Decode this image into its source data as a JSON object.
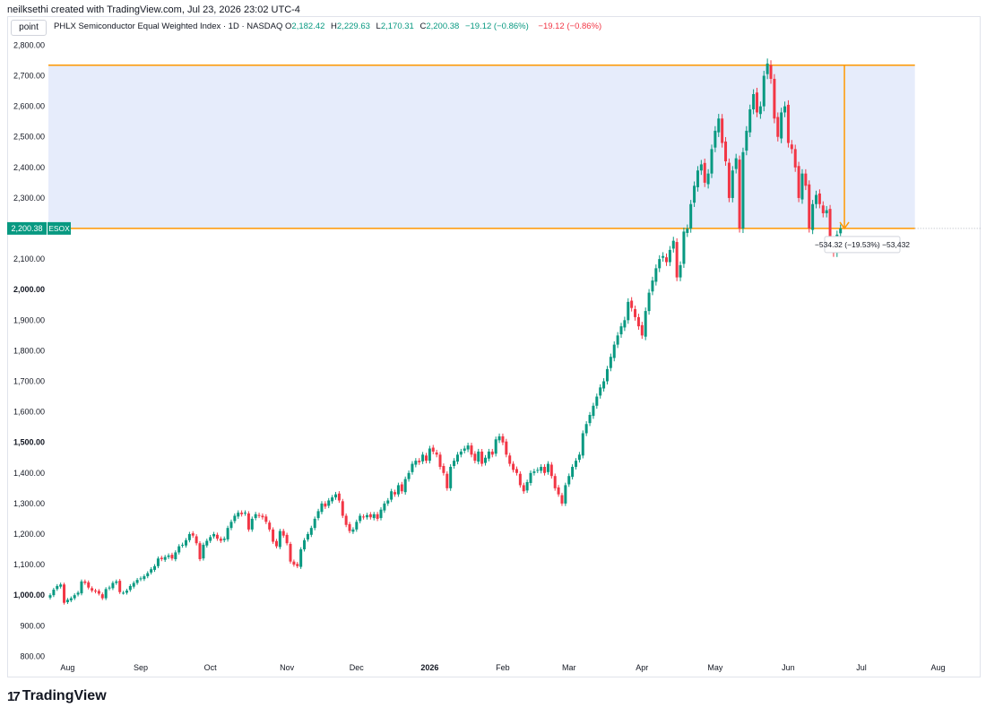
{
  "header": {
    "credit": "neilksethi created with TradingView.com, Jul 23, 2026 23:02 UTC-4",
    "symbol_chip": "point",
    "title": "PHLX Semiconductor Equal Weighted Index · 1D · NASDAQ",
    "ohlc": {
      "o_label": "O",
      "o": "2,182.42",
      "h_label": "H",
      "h": "2,229.63",
      "l_label": "L",
      "l": "2,170.31",
      "c_label": "C",
      "c": "2,200.38",
      "change": "−19.12 (−0.86%)",
      "change2": "−19.12 (−0.86%)"
    }
  },
  "footer": {
    "brand": "TradingView",
    "logo_icon": "tradingview-logo-icon"
  },
  "colors": {
    "up": "#089981",
    "down": "#f23645",
    "measure_line": "#ff9800",
    "measure_fill": "#e6ecfb",
    "price_tag": "#089981"
  },
  "chart_data": {
    "type": "candlestick",
    "title": "PHLX Semiconductor Equal Weighted Index",
    "ylim": [
      760,
      2860
    ],
    "y_ticks": [
      800,
      900,
      1000,
      1100,
      1200,
      1300,
      1400,
      1500,
      1600,
      1700,
      1800,
      1900,
      2000,
      2100,
      2200,
      2300,
      2400,
      2500,
      2600,
      2700,
      2800
    ],
    "y_tick_labels": [
      "800.00",
      "900.00",
      "1,000.00",
      "1,100.00",
      "1,200.00",
      "1,300.00",
      "1,400.00",
      "1,500.00",
      "1,600.00",
      "1,700.00",
      "1,800.00",
      "1,900.00",
      "2,000.00",
      "2,100.00",
      "2,200.00",
      "2,300.00",
      "2,400.00",
      "2,500.00",
      "2,600.00",
      "2,700.00",
      "2,800.00"
    ],
    "x_ticks": [
      {
        "label": "Aug",
        "index": 5,
        "bold": false
      },
      {
        "label": "Sep",
        "index": 26,
        "bold": false
      },
      {
        "label": "Oct",
        "index": 46,
        "bold": false
      },
      {
        "label": "Nov",
        "index": 68,
        "bold": false
      },
      {
        "label": "Dec",
        "index": 88,
        "bold": false
      },
      {
        "label": "2026",
        "index": 109,
        "bold": true
      },
      {
        "label": "Feb",
        "index": 130,
        "bold": false
      },
      {
        "label": "Mar",
        "index": 149,
        "bold": false
      },
      {
        "label": "Apr",
        "index": 170,
        "bold": false
      },
      {
        "label": "May",
        "index": 191,
        "bold": false
      },
      {
        "label": "Jun",
        "index": 212,
        "bold": false
      },
      {
        "label": "Jul",
        "index": 233,
        "bold": false
      },
      {
        "label": "Aug",
        "index": 255,
        "bold": false
      }
    ],
    "last_price": 2200.38,
    "last_price_label": "2,200.38",
    "symbol": "ESOX",
    "measure": {
      "from_price": 2734.7,
      "to_price": 2200.38,
      "from_index": 224,
      "to_index": 253,
      "label": "−534.32 (−19.53%) −53,432"
    },
    "closes": [
      1000,
      1018,
      1030,
      1035,
      975,
      985,
      990,
      1000,
      1008,
      1045,
      1040,
      1025,
      1015,
      1012,
      1005,
      990,
      1020,
      1025,
      1040,
      1045,
      1010,
      1008,
      1015,
      1030,
      1040,
      1050,
      1055,
      1062,
      1072,
      1085,
      1095,
      1120,
      1118,
      1125,
      1130,
      1120,
      1140,
      1160,
      1165,
      1180,
      1200,
      1195,
      1170,
      1118,
      1165,
      1178,
      1190,
      1200,
      1185,
      1178,
      1185,
      1220,
      1240,
      1260,
      1270,
      1265,
      1270,
      1215,
      1250,
      1265,
      1260,
      1255,
      1240,
      1215,
      1175,
      1160,
      1210,
      1195,
      1170,
      1110,
      1100,
      1095,
      1150,
      1180,
      1200,
      1220,
      1250,
      1275,
      1300,
      1290,
      1310,
      1320,
      1330,
      1310,
      1260,
      1230,
      1210,
      1215,
      1240,
      1260,
      1255,
      1262,
      1255,
      1265,
      1250,
      1280,
      1300,
      1310,
      1340,
      1330,
      1360,
      1340,
      1380,
      1400,
      1430,
      1440,
      1435,
      1460,
      1440,
      1480,
      1470,
      1460,
      1420,
      1400,
      1350,
      1420,
      1440,
      1460,
      1470,
      1480,
      1490,
      1460,
      1440,
      1470,
      1430,
      1450,
      1470,
      1460,
      1510,
      1520,
      1500,
      1460,
      1430,
      1410,
      1400,
      1360,
      1340,
      1370,
      1400,
      1405,
      1410,
      1420,
      1400,
      1430,
      1390,
      1350,
      1330,
      1300,
      1360,
      1390,
      1420,
      1440,
      1460,
      1530,
      1560,
      1590,
      1620,
      1650,
      1680,
      1700,
      1740,
      1780,
      1820,
      1850,
      1880,
      1900,
      1960,
      1940,
      1910,
      1880,
      1850,
      1930,
      1990,
      2030,
      2070,
      2100,
      2110,
      2090,
      2130,
      2160,
      2040,
      2080,
      2190,
      2200,
      2280,
      2340,
      2390,
      2410,
      2350,
      2380,
      2460,
      2520,
      2560,
      2480,
      2420,
      2300,
      2390,
      2430,
      2200,
      2450,
      2520,
      2590,
      2640,
      2580,
      2600,
      2700,
      2740,
      2690,
      2560,
      2500,
      2580,
      2600,
      2480,
      2460,
      2400,
      2300,
      2380,
      2340,
      2200,
      2280,
      2310,
      2280,
      2250,
      2260,
      2140,
      2120,
      2180,
      2200
    ]
  }
}
